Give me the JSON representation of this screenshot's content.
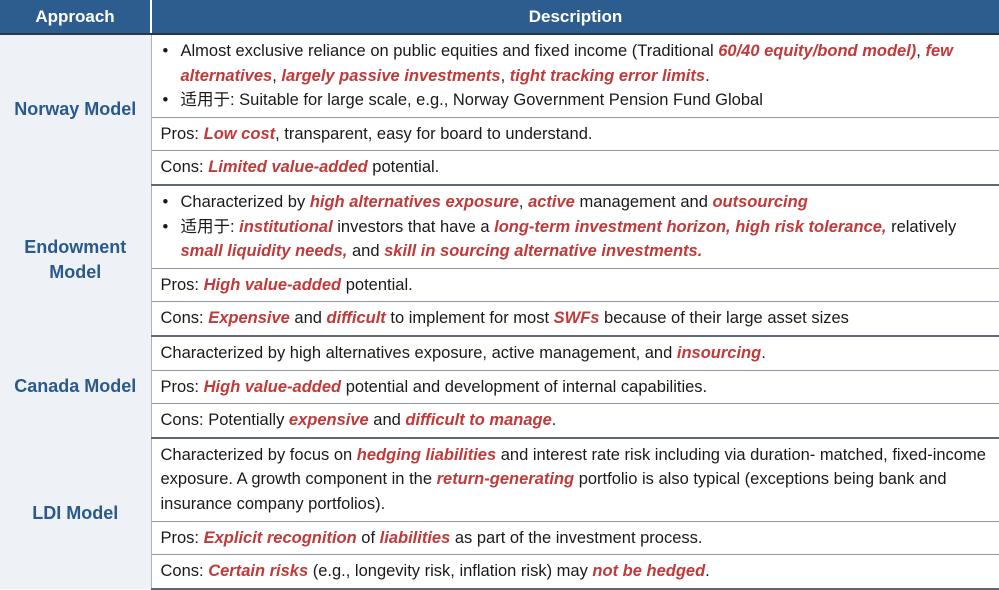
{
  "header": {
    "approach": "Approach",
    "description": "Description"
  },
  "rows": {
    "norway": {
      "name": "Norway Model",
      "b1_t1": "Almost exclusive reliance on public equities and fixed income (Traditional ",
      "b1_h1": "60/40 equity/bond model)",
      "b1_t2": ", ",
      "b1_h2": "few alternatives",
      "b1_t3": ", ",
      "b1_h3": "largely passive investments",
      "b1_t4": ", ",
      "b1_h4": "tight tracking error limits",
      "b1_t5": ".",
      "b2_prefix": "适用于",
      "b2_text": ": Suitable for large scale, e.g., Norway Government Pension Fund Global",
      "pros_label": "Pros: ",
      "pros_h1": "Low cost",
      "pros_t1": ", transparent, easy for board to understand.",
      "cons_label": "Cons: ",
      "cons_h1": "Limited value-added",
      "cons_t1": " potential."
    },
    "endowment": {
      "name": "Endowment Model",
      "b1_t1": "Characterized by ",
      "b1_h1": "high alternatives exposure",
      "b1_t2": ", ",
      "b1_h2": "active",
      "b1_t3": " management and ",
      "b1_h3": "outsourcing",
      "b2_prefix": "适用于",
      "b2_t1": ": ",
      "b2_h1": "institutional",
      "b2_t2": " investors that have a ",
      "b2_h2": "long-term investment horizon, high risk tolerance,",
      "b2_t3": " relatively ",
      "b2_h3": "small liquidity needs,",
      "b2_t4": " and ",
      "b2_h4": "skill in sourcing alternative investments.",
      "pros_label": "Pros: ",
      "pros_h1": "High value-added",
      "pros_t1": " potential.",
      "cons_label": "Cons: ",
      "cons_h1": "Expensive",
      "cons_t1": " and ",
      "cons_h2": "difficult",
      "cons_t2": " to implement for most ",
      "cons_h3": "SWFs",
      "cons_t3": " because of their large asset sizes"
    },
    "canada": {
      "name": "Canada Model",
      "d_t1": "Characterized by high alternatives exposure, active management, and ",
      "d_h1": "insourcing",
      "d_t2": ".",
      "pros_label": "Pros: ",
      "pros_h1": "High value-added",
      "pros_t1": " potential and development of internal capabilities.",
      "cons_label": "Cons: ",
      "cons_t0": "Potentially ",
      "cons_h1": "expensive",
      "cons_t1": " and ",
      "cons_h2": "difficult to manage",
      "cons_t2": "."
    },
    "ldi": {
      "name": "LDI Model",
      "d_t1": "Characterized by focus on ",
      "d_h1": "hedging liabilities",
      "d_t2": " and interest rate risk including via duration- matched, fixed-income exposure. A growth component in the ",
      "d_h2": "return-generating",
      "d_t3": " portfolio is also typical (exceptions being bank and insurance company portfolios).",
      "pros_label": "Pros: ",
      "pros_h1": "Explicit recognition",
      "pros_t1": " of ",
      "pros_h2": "liabilities",
      "pros_t2": " as part of the investment process.",
      "cons_label": "Cons: ",
      "cons_h1": "Certain risks",
      "cons_t1": " (e.g., longevity risk, inflation risk) may ",
      "cons_h2": "not be hedged",
      "cons_t2": "."
    }
  },
  "bullet": "•"
}
